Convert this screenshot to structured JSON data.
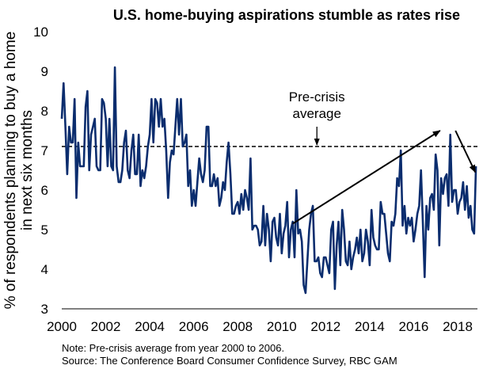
{
  "chart_data": {
    "type": "line",
    "title": "U.S. home-buying aspirations stumble as rates rise",
    "ylabel": [
      "% of respondents planning to buy a home",
      "in next six months"
    ],
    "xlabel": "",
    "xlim": [
      2000,
      2018.9
    ],
    "ylim": [
      3,
      10
    ],
    "x_ticks": [
      "2000",
      "2002",
      "2004",
      "2006",
      "2008",
      "2010",
      "2012",
      "2014",
      "2016",
      "2018"
    ],
    "y_ticks": [
      "3",
      "4",
      "5",
      "6",
      "7",
      "8",
      "9",
      "10"
    ],
    "grid": false,
    "series": [
      {
        "name": "",
        "color": "#0b2d6e",
        "x_start": 2000.0,
        "x_step": 0.08333,
        "values": [
          7.8,
          8.7,
          7.6,
          6.4,
          7.6,
          7.2,
          7.2,
          8.3,
          5.8,
          7.2,
          6.6,
          6.6,
          6.6,
          8.1,
          8.5,
          6.5,
          7.4,
          7.6,
          7.8,
          6.6,
          6.5,
          6.5,
          8.3,
          8.2,
          7.8,
          6.6,
          7.8,
          6.6,
          6.5,
          9.1,
          6.6,
          6.2,
          6.2,
          6.5,
          7.2,
          7.5,
          6.5,
          6.3,
          7.0,
          7.4,
          6.4,
          6.4,
          7.4,
          6.1,
          6.5,
          6.3,
          6.6,
          7.1,
          7.4,
          8.3,
          7.2,
          8.3,
          8.2,
          7.6,
          8.3,
          7.6,
          7.8,
          7.0,
          5.8,
          6.7,
          7.0,
          6.9,
          7.6,
          8.3,
          7.4,
          8.3,
          7.1,
          7.2,
          7.4,
          6.1,
          6.5,
          5.6,
          6.0,
          5.6,
          6.2,
          6.8,
          6.4,
          6.2,
          6.5,
          7.6,
          7.6,
          6.1,
          6.1,
          6.4,
          6.1,
          6.3,
          5.6,
          5.8,
          6.2,
          6.0,
          6.7,
          7.2,
          6.4,
          5.4,
          5.4,
          5.6,
          5.7,
          5.4,
          5.9,
          5.5,
          6.0,
          5.8,
          5.5,
          6.8,
          5.0,
          5.1,
          5.1,
          5.0,
          4.6,
          4.7,
          5.6,
          4.6,
          5.4,
          5.0,
          4.2,
          5.2,
          5.3,
          4.8,
          4.6,
          5.4,
          4.4,
          4.9,
          5.1,
          5.7,
          4.3,
          5.0,
          5.2,
          4.3,
          6.0,
          4.9,
          5.0,
          4.7,
          3.6,
          3.4,
          4.2,
          5.0,
          5.4,
          5.6,
          4.2,
          4.2,
          4.3,
          3.9,
          3.8,
          4.3,
          4.3,
          4.1,
          3.9,
          5.0,
          5.2,
          3.5,
          4.6,
          5.2,
          4.1,
          5.5,
          5.0,
          4.2,
          4.1,
          4.7,
          4.0,
          4.3,
          4.5,
          4.8,
          4.4,
          5.0,
          4.2,
          4.4,
          5.0,
          4.7,
          4.1,
          5.5,
          4.8,
          4.6,
          4.5,
          4.5,
          5.7,
          5.4,
          5.4,
          4.9,
          4.4,
          4.2,
          5.2,
          5.1,
          5.4,
          6.3,
          6.1,
          7.0,
          5.1,
          5.6,
          4.9,
          5.3,
          5.1,
          5.3,
          4.7,
          5.0,
          5.4,
          5.6,
          6.5,
          5.2,
          3.8,
          5.6,
          5.0,
          5.8,
          5.9,
          5.5,
          6.9,
          6.5,
          4.6,
          6.3,
          5.9,
          6.3,
          6.4,
          5.6,
          7.4,
          5.7,
          6.0,
          6.0,
          5.4,
          5.7,
          5.8,
          6.2,
          5.5,
          6.1,
          5.3,
          5.6,
          5.0,
          4.9,
          6.6,
          5.2,
          5.4,
          5.8,
          5.2,
          5.8,
          5.4,
          4.9,
          5.2,
          5.8,
          5.1,
          5.3,
          5.9,
          5.8,
          6.1,
          4.4,
          5.1,
          5.9,
          6.1,
          6.6,
          5.4,
          6.5,
          6.5,
          6.4,
          7.0,
          6.0,
          5.2,
          6.6,
          5.6,
          6.0,
          6.9,
          6.5,
          7.4,
          5.7,
          6.1,
          6.4,
          5.4,
          6.9,
          5.5,
          5.9,
          6.5,
          5.3,
          6.7,
          5.1,
          6.1,
          6.3,
          5.3,
          5.6,
          6.1,
          5.7,
          6.6,
          6.0,
          5.7,
          6.3,
          5.6,
          5.9,
          6.4,
          5.4,
          5.5,
          6.1,
          6.2,
          5.7,
          6.4,
          5.6,
          6.2,
          5.9,
          6.3,
          6.2,
          7.5,
          6.0,
          6.6,
          6.1,
          5.5,
          7.1,
          6.8,
          5.6,
          6.3,
          7.3,
          7.4,
          6.4,
          5.8,
          7.4,
          6.5,
          6.6,
          6.3,
          7.2,
          6.0,
          6.1,
          6.5,
          6.4,
          5.7,
          6.4,
          6.0,
          6.7,
          6.4,
          5.9,
          6.0,
          6.2,
          6.6,
          7.3,
          6.3,
          6.4,
          7.1,
          6.2,
          7.4,
          6.6,
          6.5,
          6.4,
          6.9,
          6.0,
          6.3,
          6.0,
          6.4,
          7.1,
          6.9,
          6.7,
          6.3,
          6.1,
          6.6,
          6.4,
          7.3,
          6.4,
          6.5,
          5.7,
          6.0,
          6.8,
          6.3,
          6.5,
          6.5,
          6.5,
          6.6,
          7.2,
          5.9,
          6.5,
          6.4,
          6.8,
          6.3,
          7.3,
          6.7,
          6.4,
          6.3,
          6.3,
          6.8,
          6.5,
          6.4,
          6.2,
          7.1,
          7.3,
          7.4,
          6.5,
          6.1,
          7.1,
          6.5,
          7.5,
          6.1,
          6.4,
          6.0,
          6.4,
          6.4,
          6.3,
          6.0,
          6.8,
          6.3,
          5.5,
          6.4,
          5.4,
          6.1,
          6.3,
          6.1,
          6.4
        ]
      }
    ],
    "reference_line": {
      "value": 7.1,
      "style": "dashed",
      "label_line1": "Pre-crisis",
      "label_line2": "average"
    },
    "trend_arrows": [
      {
        "from": [
          2010.5,
          5.15
        ],
        "to": [
          2017.2,
          7.5
        ]
      },
      {
        "from": [
          2017.9,
          7.5
        ],
        "to": [
          2018.8,
          6.45
        ]
      }
    ]
  },
  "notes": {
    "line1": "Note: Pre-crisis average from year 2000 to 2006.",
    "line2": "Source: The Conference Board Consumer Confidence Survey, RBC GAM"
  }
}
